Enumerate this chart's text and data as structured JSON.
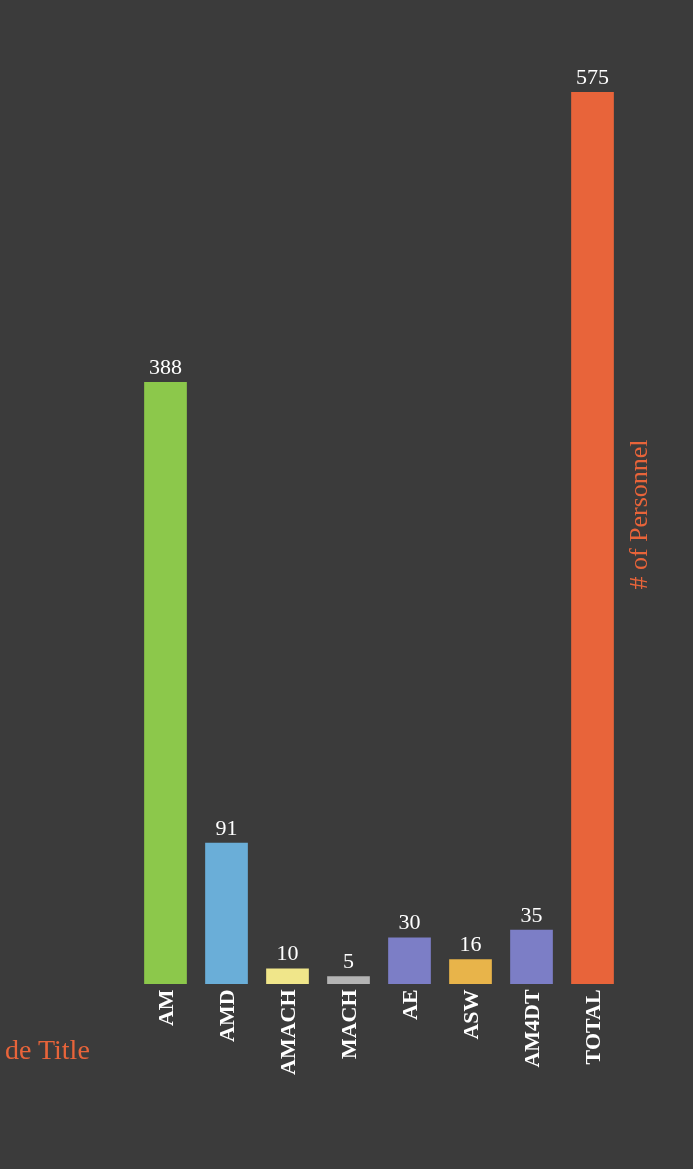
{
  "chart_data": {
    "type": "bar",
    "xlabel": "de Title",
    "ylabel": "# of Personnel",
    "categories": [
      "AM",
      "AMD",
      "AMACH",
      "MACH",
      "AE",
      "ASW",
      "AM4DT",
      "TOTAL"
    ],
    "values": [
      388,
      91,
      10,
      5,
      30,
      16,
      35,
      575
    ],
    "colors": [
      "#8cc84b",
      "#6aaed8",
      "#f0e68a",
      "#b4b4b4",
      "#7c7ec6",
      "#e8b44a",
      "#7c7ec6",
      "#e8643a"
    ],
    "data_labels": true,
    "tick_labels": "x"
  }
}
